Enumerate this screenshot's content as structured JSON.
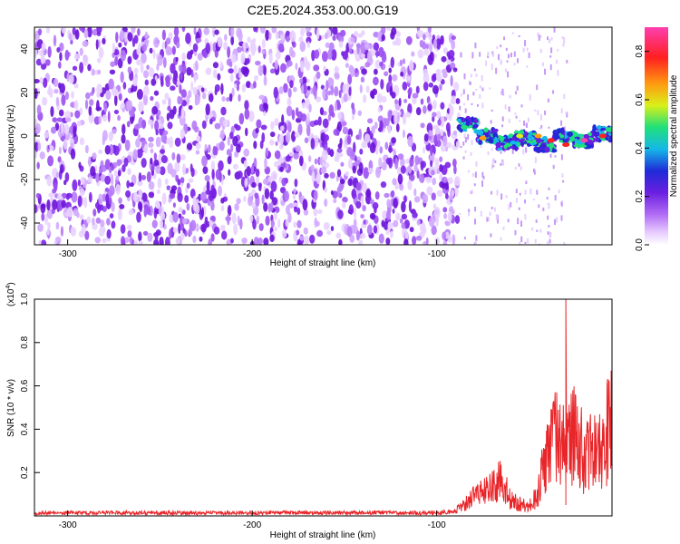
{
  "title": "C2E5.2024.353.00.00.G19",
  "colors": {
    "signal": "#e8262a",
    "noise_purple": "#7a22e6",
    "colormap": [
      "#ffffff",
      "#e6c8ff",
      "#b16cf5",
      "#6a1fe0",
      "#1f2bd8",
      "#15b8e8",
      "#1fe07a",
      "#d8f01a",
      "#ff9a10",
      "#ff2020",
      "#ff3fb0"
    ]
  },
  "chart_data": [
    {
      "type": "heatmap",
      "xlabel": "Height of straight line (km)",
      "ylabel": "Frequency (Hz)",
      "xlim": [
        -318,
        -5
      ],
      "ylim": [
        -50,
        50
      ],
      "xticks": [
        -300,
        -200,
        -100
      ],
      "yticks": [
        -40,
        -20,
        0,
        20,
        40
      ],
      "grid": false,
      "colorbar": {
        "label": "Normalized spectral amplitude",
        "range": [
          0,
          0.9
        ],
        "ticks": [
          "0.0",
          "0.2",
          "0.4",
          "0.6",
          "0.8"
        ]
      },
      "features": {
        "noise_region_x": [
          -318,
          -88
        ],
        "signal_band_x": [
          -88,
          -5
        ],
        "signal_band_center_y": [
          5,
          0,
          -3,
          -1,
          -4,
          0,
          -2,
          1
        ],
        "peak_amplitude_points": [
          [
            -85,
            4,
            0.5
          ],
          [
            -78,
            2,
            0.45
          ],
          [
            -75,
            -1,
            0.7
          ],
          [
            -55,
            0,
            0.6
          ],
          [
            -45,
            0,
            0.75
          ],
          [
            -38,
            -2,
            0.85
          ],
          [
            -30,
            -4,
            0.8
          ],
          [
            -20,
            -2,
            0.9
          ],
          [
            -10,
            0,
            0.85
          ]
        ]
      }
    },
    {
      "type": "line",
      "xlabel": "Height of straight line (km)",
      "ylabel": "SNR (10 * v/v)",
      "y_multiplier": "(x10",
      "y_multiplier_exp": "4",
      "xlim": [
        -318,
        -5
      ],
      "ylim": [
        0,
        1.0
      ],
      "xticks": [
        -300,
        -200,
        -100
      ],
      "yticks": [
        "0.2",
        "0.4",
        "0.6",
        "0.8",
        "1.0"
      ],
      "grid": false,
      "series": [
        {
          "x": [
            -318,
            -250,
            -200,
            -150,
            -100,
            -90,
            -85,
            -80,
            -75,
            -70,
            -65,
            -60,
            -55,
            -50,
            -45,
            -40,
            -35,
            -30,
            -25,
            -20,
            -15,
            -10,
            -5
          ],
          "y": [
            0.02,
            0.02,
            0.02,
            0.02,
            0.02,
            0.03,
            0.08,
            0.12,
            0.15,
            0.18,
            0.25,
            0.1,
            0.08,
            0.06,
            0.15,
            0.45,
            0.55,
            0.42,
            0.6,
            0.38,
            0.45,
            0.4,
            0.72
          ]
        }
      ]
    }
  ]
}
